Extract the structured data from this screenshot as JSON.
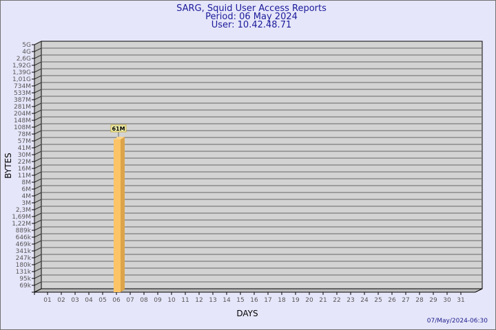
{
  "chart_data": {
    "type": "bar",
    "title": [
      "SARG, Squid User Access Reports",
      "Period: 06 May 2024",
      "User: 10.42.48.71"
    ],
    "xlabel": "DAYS",
    "ylabel": "BYTES",
    "y_scale": "log",
    "y_tick_labels": [
      "5G",
      "4G",
      "2,6G",
      "1,92G",
      "1,39G",
      "1,01G",
      "734M",
      "533M",
      "387M",
      "281M",
      "204M",
      "148M",
      "108M",
      "78M",
      "57M",
      "41M",
      "30M",
      "22M",
      "16M",
      "11M",
      "8M",
      "6M",
      "4M",
      "3M",
      "2,3M",
      "1,69M",
      "1,22M",
      "889k",
      "646k",
      "469k",
      "341k",
      "247k",
      "180k",
      "131k",
      "95k",
      "69k"
    ],
    "categories": [
      "01",
      "02",
      "03",
      "04",
      "05",
      "06",
      "07",
      "08",
      "09",
      "10",
      "11",
      "12",
      "13",
      "14",
      "15",
      "16",
      "17",
      "18",
      "19",
      "20",
      "21",
      "22",
      "23",
      "24",
      "25",
      "26",
      "27",
      "28",
      "29",
      "30",
      "31"
    ],
    "values": [
      null,
      null,
      null,
      null,
      null,
      61000000,
      null,
      null,
      null,
      null,
      null,
      null,
      null,
      null,
      null,
      null,
      null,
      null,
      null,
      null,
      null,
      null,
      null,
      null,
      null,
      null,
      null,
      null,
      null,
      null,
      null
    ],
    "data_labels": {
      "06": "61M"
    },
    "grid": true,
    "colors": {
      "background": "#e6e6fa",
      "plot": "#d3d3d3",
      "bar_front": "#fcc466",
      "bar_side": "#dca44a",
      "grid": "#666666",
      "title": "#1a1a9a"
    }
  },
  "footer": {
    "timestamp": "07/May/2024-06:30"
  }
}
